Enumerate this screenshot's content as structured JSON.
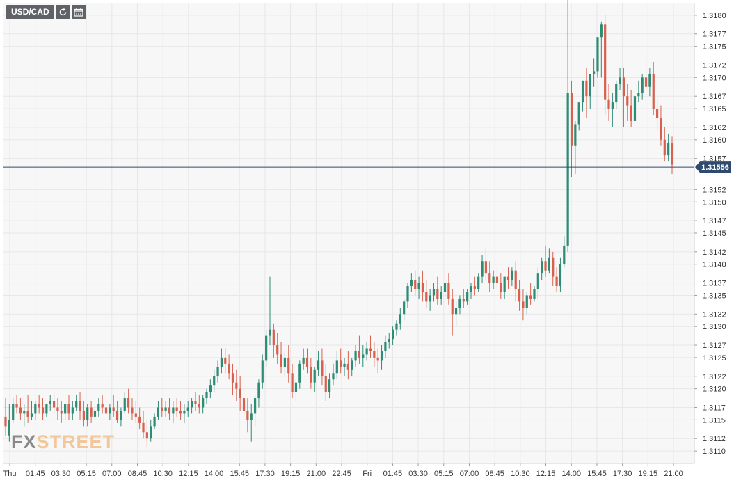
{
  "toolbar": {
    "symbol": "USD/CAD",
    "refresh_icon": "refresh-icon",
    "calendar_icon": "calendar-icon"
  },
  "last_price": "1.31556",
  "watermark": {
    "part1": "FX",
    "part2": "STREET"
  },
  "colors": {
    "up": "#2e8b74",
    "down": "#d8604f",
    "grid": "#e7e7e7",
    "plot_bg": "#f7f7f7",
    "price_line": "#2e4a6e",
    "price_tag": "#2e4a6e"
  },
  "chart_data": {
    "type": "candlestick",
    "ylim": [
      1.3108,
      1.3182
    ],
    "y_ticks": [
      "1.3110",
      "1.3112",
      "1.3115",
      "1.3117",
      "1.3120",
      "1.3122",
      "1.3125",
      "1.3127",
      "1.3130",
      "1.3132",
      "1.3135",
      "1.3137",
      "1.3140",
      "1.3142",
      "1.3145",
      "1.3147",
      "1.3150",
      "1.3152",
      "1.3157",
      "1.3160",
      "1.3162",
      "1.3165",
      "1.3167",
      "1.3170",
      "1.3172",
      "1.3175",
      "1.3177",
      "1.3180"
    ],
    "x_ticks": [
      "Thu",
      "01:45",
      "03:30",
      "05:15",
      "07:00",
      "08:45",
      "10:30",
      "12:15",
      "14:00",
      "15:45",
      "17:30",
      "19:15",
      "21:00",
      "22:45",
      "Fri",
      "01:45",
      "03:30",
      "05:15",
      "07:00",
      "08:45",
      "10:30",
      "12:15",
      "14:00",
      "15:45",
      "17:30",
      "19:15",
      "21:00"
    ],
    "candles": [
      [
        1.31155,
        1.31185,
        1.3114,
        1.31125
      ],
      [
        1.31125,
        1.31175,
        1.3115,
        1.31115
      ],
      [
        1.3115,
        1.31185,
        1.31175,
        1.31145
      ],
      [
        1.31175,
        1.3119,
        1.3117,
        1.3116
      ],
      [
        1.3117,
        1.31185,
        1.3116,
        1.3115
      ],
      [
        1.3116,
        1.31175,
        1.31165,
        1.3114
      ],
      [
        1.31165,
        1.3119,
        1.31155,
        1.31145
      ],
      [
        1.31155,
        1.3118,
        1.3116,
        1.3115
      ],
      [
        1.3116,
        1.3118,
        1.31175,
        1.3115
      ],
      [
        1.31175,
        1.3119,
        1.3117,
        1.3116
      ],
      [
        1.3117,
        1.31185,
        1.3116,
        1.3115
      ],
      [
        1.3116,
        1.31175,
        1.31175,
        1.31155
      ],
      [
        1.31175,
        1.3119,
        1.3118,
        1.31165
      ],
      [
        1.3118,
        1.31195,
        1.3117,
        1.3116
      ],
      [
        1.3117,
        1.31185,
        1.31165,
        1.3115
      ],
      [
        1.31165,
        1.3118,
        1.3116,
        1.31145
      ],
      [
        1.3116,
        1.31175,
        1.31175,
        1.3115
      ],
      [
        1.31175,
        1.3119,
        1.3116,
        1.3115
      ],
      [
        1.3116,
        1.3118,
        1.3117,
        1.3115
      ],
      [
        1.3117,
        1.3119,
        1.3118,
        1.31165
      ],
      [
        1.3118,
        1.31195,
        1.31165,
        1.3115
      ],
      [
        1.31165,
        1.3118,
        1.3115,
        1.3114
      ],
      [
        1.3115,
        1.31175,
        1.3117,
        1.3114
      ],
      [
        1.3117,
        1.3118,
        1.31155,
        1.31145
      ],
      [
        1.31155,
        1.3117,
        1.31165,
        1.3115
      ],
      [
        1.31165,
        1.31185,
        1.31175,
        1.31155
      ],
      [
        1.31175,
        1.3119,
        1.3117,
        1.3116
      ],
      [
        1.3117,
        1.31185,
        1.3116,
        1.3115
      ],
      [
        1.3116,
        1.31175,
        1.3117,
        1.3115
      ],
      [
        1.3117,
        1.3119,
        1.31165,
        1.31155
      ],
      [
        1.31165,
        1.3118,
        1.3115,
        1.31145
      ],
      [
        1.3115,
        1.3117,
        1.31165,
        1.3114
      ],
      [
        1.31165,
        1.31195,
        1.31185,
        1.3116
      ],
      [
        1.31185,
        1.312,
        1.3117,
        1.3116
      ],
      [
        1.3117,
        1.31185,
        1.3116,
        1.3115
      ],
      [
        1.3116,
        1.3118,
        1.31155,
        1.31145
      ],
      [
        1.31155,
        1.3117,
        1.31145,
        1.31135
      ],
      [
        1.31145,
        1.31165,
        1.3113,
        1.3112
      ],
      [
        1.3113,
        1.3115,
        1.3112,
        1.31105
      ],
      [
        1.3112,
        1.3115,
        1.3114,
        1.31115
      ],
      [
        1.3114,
        1.3116,
        1.31155,
        1.31135
      ],
      [
        1.31155,
        1.3118,
        1.3117,
        1.3115
      ],
      [
        1.3117,
        1.31185,
        1.31165,
        1.31155
      ],
      [
        1.31165,
        1.3118,
        1.3117,
        1.31155
      ],
      [
        1.3117,
        1.31185,
        1.3116,
        1.3115
      ],
      [
        1.3116,
        1.3118,
        1.3117,
        1.31145
      ],
      [
        1.3117,
        1.31185,
        1.31165,
        1.31155
      ],
      [
        1.31165,
        1.3118,
        1.3116,
        1.3115
      ],
      [
        1.3116,
        1.31175,
        1.31165,
        1.31145
      ],
      [
        1.31165,
        1.3118,
        1.3117,
        1.31155
      ],
      [
        1.3117,
        1.31185,
        1.3118,
        1.3116
      ],
      [
        1.3118,
        1.31195,
        1.31175,
        1.31165
      ],
      [
        1.31175,
        1.3119,
        1.3117,
        1.3116
      ],
      [
        1.3117,
        1.3119,
        1.31185,
        1.3116
      ],
      [
        1.31185,
        1.312,
        1.31195,
        1.31175
      ],
      [
        1.31195,
        1.31215,
        1.31205,
        1.31185
      ],
      [
        1.31205,
        1.3123,
        1.3122,
        1.31195
      ],
      [
        1.3122,
        1.31245,
        1.31235,
        1.3121
      ],
      [
        1.31235,
        1.31265,
        1.3125,
        1.31225
      ],
      [
        1.3125,
        1.31265,
        1.3124,
        1.31225
      ],
      [
        1.3124,
        1.31255,
        1.31225,
        1.31215
      ],
      [
        1.31225,
        1.3124,
        1.3121,
        1.3119
      ],
      [
        1.3121,
        1.3123,
        1.312,
        1.3118
      ],
      [
        1.312,
        1.3122,
        1.31185,
        1.31165
      ],
      [
        1.31185,
        1.31205,
        1.31165,
        1.3115
      ],
      [
        1.31165,
        1.31185,
        1.3115,
        1.3113
      ],
      [
        1.3115,
        1.31175,
        1.3116,
        1.31115
      ],
      [
        1.3116,
        1.3119,
        1.31185,
        1.3114
      ],
      [
        1.31185,
        1.31215,
        1.3121,
        1.3117
      ],
      [
        1.3121,
        1.31255,
        1.31245,
        1.312
      ],
      [
        1.31245,
        1.31295,
        1.31285,
        1.31235
      ],
      [
        1.31285,
        1.3138,
        1.31295,
        1.3127
      ],
      [
        1.31295,
        1.31305,
        1.3127,
        1.3125
      ],
      [
        1.3127,
        1.3129,
        1.31255,
        1.3124
      ],
      [
        1.31255,
        1.31275,
        1.31235,
        1.31225
      ],
      [
        1.31235,
        1.3126,
        1.3125,
        1.3122
      ],
      [
        1.3125,
        1.3127,
        1.31225,
        1.3121
      ],
      [
        1.31225,
        1.3124,
        1.31195,
        1.31185
      ],
      [
        1.31195,
        1.31215,
        1.3121,
        1.3118
      ],
      [
        1.3121,
        1.31245,
        1.3124,
        1.312
      ],
      [
        1.3124,
        1.31265,
        1.3125,
        1.3123
      ],
      [
        1.3125,
        1.31265,
        1.31235,
        1.31225
      ],
      [
        1.31235,
        1.3125,
        1.3121,
        1.312
      ],
      [
        1.3121,
        1.31235,
        1.3123,
        1.31195
      ],
      [
        1.3123,
        1.3126,
        1.31245,
        1.3122
      ],
      [
        1.31245,
        1.31265,
        1.3122,
        1.31205
      ],
      [
        1.3122,
        1.3124,
        1.31195,
        1.3118
      ],
      [
        1.31195,
        1.31225,
        1.31215,
        1.31185
      ],
      [
        1.31215,
        1.3124,
        1.31225,
        1.31205
      ],
      [
        1.31225,
        1.3126,
        1.31245,
        1.31215
      ],
      [
        1.31245,
        1.31265,
        1.31235,
        1.31225
      ],
      [
        1.31235,
        1.3125,
        1.3124,
        1.3122
      ],
      [
        1.3124,
        1.3126,
        1.3123,
        1.31215
      ],
      [
        1.3123,
        1.3125,
        1.31245,
        1.3122
      ],
      [
        1.31245,
        1.3127,
        1.3126,
        1.31235
      ],
      [
        1.3126,
        1.31285,
        1.3125,
        1.3124
      ],
      [
        1.3125,
        1.3127,
        1.31255,
        1.31235
      ],
      [
        1.31255,
        1.31275,
        1.31265,
        1.31245
      ],
      [
        1.31265,
        1.31285,
        1.3126,
        1.3125
      ],
      [
        1.3126,
        1.31275,
        1.3125,
        1.31235
      ],
      [
        1.3125,
        1.31265,
        1.31245,
        1.31225
      ],
      [
        1.31245,
        1.3127,
        1.3126,
        1.3123
      ],
      [
        1.3126,
        1.31285,
        1.31275,
        1.3125
      ],
      [
        1.31275,
        1.3129,
        1.3128,
        1.31265
      ],
      [
        1.3128,
        1.313,
        1.31295,
        1.3127
      ],
      [
        1.31295,
        1.3131,
        1.31305,
        1.31285
      ],
      [
        1.31305,
        1.3133,
        1.3132,
        1.31295
      ],
      [
        1.3132,
        1.31345,
        1.3134,
        1.3131
      ],
      [
        1.3134,
        1.3137,
        1.31365,
        1.3133
      ],
      [
        1.31365,
        1.31385,
        1.31375,
        1.31355
      ],
      [
        1.31375,
        1.3139,
        1.3136,
        1.3135
      ],
      [
        1.3136,
        1.3138,
        1.3137,
        1.31345
      ],
      [
        1.3137,
        1.3139,
        1.31355,
        1.3134
      ],
      [
        1.31355,
        1.31375,
        1.3134,
        1.3133
      ],
      [
        1.3134,
        1.3136,
        1.3135,
        1.31325
      ],
      [
        1.3135,
        1.3137,
        1.3136,
        1.3134
      ],
      [
        1.3136,
        1.3138,
        1.31345,
        1.31335
      ],
      [
        1.31345,
        1.31365,
        1.31355,
        1.31335
      ],
      [
        1.31355,
        1.3138,
        1.3137,
        1.31345
      ],
      [
        1.3137,
        1.31385,
        1.31345,
        1.31335
      ],
      [
        1.31345,
        1.3136,
        1.3132,
        1.31285
      ],
      [
        1.3132,
        1.3134,
        1.3133,
        1.313
      ],
      [
        1.3133,
        1.3135,
        1.31345,
        1.3132
      ],
      [
        1.31345,
        1.3136,
        1.3134,
        1.3133
      ],
      [
        1.3134,
        1.3136,
        1.31355,
        1.31335
      ],
      [
        1.31355,
        1.3137,
        1.31365,
        1.31345
      ],
      [
        1.31365,
        1.3138,
        1.3136,
        1.3135
      ],
      [
        1.3136,
        1.31385,
        1.3138,
        1.31355
      ],
      [
        1.3138,
        1.31415,
        1.31405,
        1.3137
      ],
      [
        1.31405,
        1.31425,
        1.31385,
        1.31375
      ],
      [
        1.31385,
        1.31405,
        1.3137,
        1.31355
      ],
      [
        1.3137,
        1.3139,
        1.3138,
        1.3136
      ],
      [
        1.3138,
        1.31395,
        1.3137,
        1.3136
      ],
      [
        1.3137,
        1.31385,
        1.31355,
        1.31345
      ],
      [
        1.31355,
        1.31375,
        1.3138,
        1.31345
      ],
      [
        1.3138,
        1.31395,
        1.31375,
        1.3136
      ],
      [
        1.31375,
        1.31395,
        1.3139,
        1.31365
      ],
      [
        1.3139,
        1.31405,
        1.3136,
        1.3134
      ],
      [
        1.3136,
        1.31375,
        1.3134,
        1.31325
      ],
      [
        1.3134,
        1.3136,
        1.3133,
        1.3131
      ],
      [
        1.3133,
        1.31355,
        1.3135,
        1.3132
      ],
      [
        1.3135,
        1.3137,
        1.31345,
        1.31335
      ],
      [
        1.31345,
        1.31365,
        1.3136,
        1.3134
      ],
      [
        1.3136,
        1.31395,
        1.31385,
        1.31345
      ],
      [
        1.31385,
        1.3141,
        1.31405,
        1.31375
      ],
      [
        1.31405,
        1.3143,
        1.3139,
        1.3138
      ],
      [
        1.3139,
        1.31425,
        1.3141,
        1.31385
      ],
      [
        1.3141,
        1.3142,
        1.3138,
        1.31365
      ],
      [
        1.3138,
        1.31395,
        1.31365,
        1.31355
      ],
      [
        1.31365,
        1.3141,
        1.314,
        1.31355
      ],
      [
        1.314,
        1.31445,
        1.3143,
        1.31395
      ],
      [
        1.3143,
        1.3183,
        1.31675,
        1.3142
      ],
      [
        1.31675,
        1.31695,
        1.3159,
        1.3154
      ],
      [
        1.3159,
        1.3163,
        1.31625,
        1.31545
      ],
      [
        1.31625,
        1.31655,
        1.3166,
        1.31615
      ],
      [
        1.3166,
        1.3169,
        1.31695,
        1.31645
      ],
      [
        1.31695,
        1.31715,
        1.3167,
        1.31635
      ],
      [
        1.3167,
        1.317,
        1.31705,
        1.3165
      ],
      [
        1.31705,
        1.3173,
        1.3171,
        1.31685
      ],
      [
        1.3171,
        1.3175,
        1.31765,
        1.317
      ],
      [
        1.31765,
        1.3179,
        1.31785,
        1.317
      ],
      [
        1.31785,
        1.318,
        1.31665,
        1.3164
      ],
      [
        1.31665,
        1.3169,
        1.3165,
        1.3163
      ],
      [
        1.3165,
        1.31675,
        1.3166,
        1.3162
      ],
      [
        1.3166,
        1.31695,
        1.3169,
        1.3165
      ],
      [
        1.3169,
        1.31715,
        1.317,
        1.3168
      ],
      [
        1.317,
        1.31715,
        1.3167,
        1.3162
      ],
      [
        1.3167,
        1.3169,
        1.31655,
        1.3163
      ],
      [
        1.31655,
        1.3168,
        1.3163,
        1.3162
      ],
      [
        1.3163,
        1.3168,
        1.3167,
        1.31625
      ],
      [
        1.3167,
        1.31695,
        1.31675,
        1.3166
      ],
      [
        1.31675,
        1.31705,
        1.317,
        1.31665
      ],
      [
        1.317,
        1.3173,
        1.31685,
        1.31675
      ],
      [
        1.31685,
        1.31715,
        1.31705,
        1.3167
      ],
      [
        1.31705,
        1.31725,
        1.3165,
        1.3164
      ],
      [
        1.3165,
        1.31665,
        1.31635,
        1.31615
      ],
      [
        1.31635,
        1.31655,
        1.316,
        1.3159
      ],
      [
        1.316,
        1.3162,
        1.31575,
        1.31565
      ],
      [
        1.31575,
        1.3161,
        1.31595,
        1.31565
      ],
      [
        1.31595,
        1.31605,
        1.3156,
        1.31545
      ]
    ],
    "last": 1.31556
  }
}
